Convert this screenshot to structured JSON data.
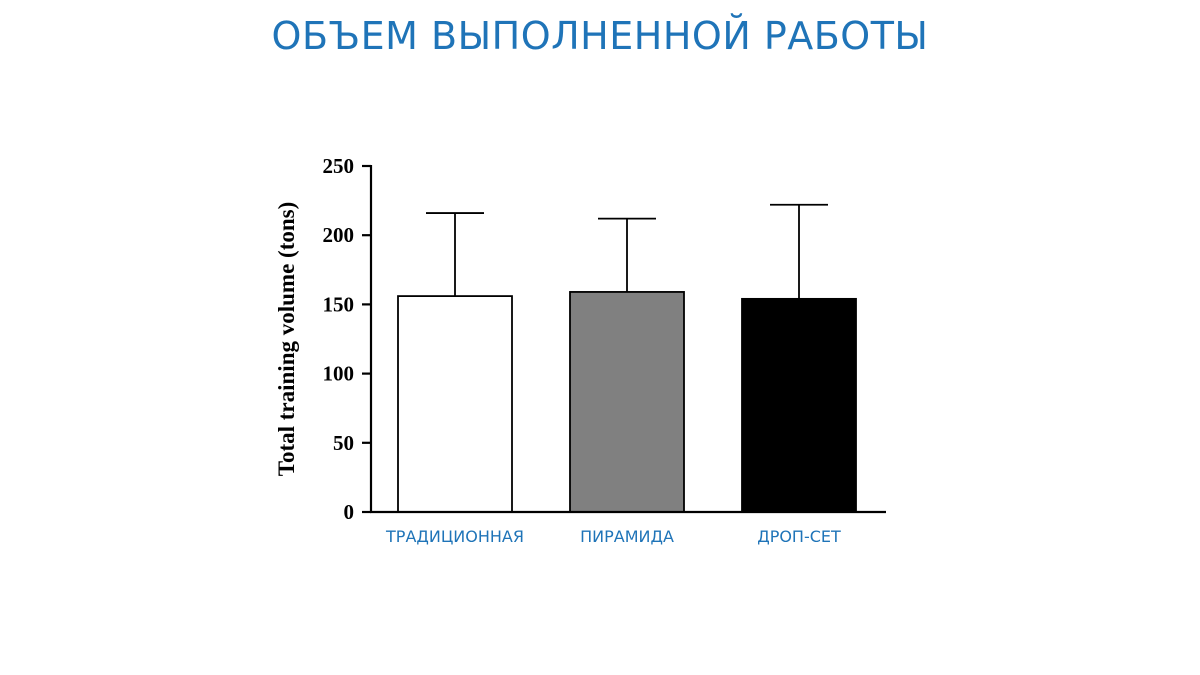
{
  "slide": {
    "title": "ОБЪЕМ ВЫПОЛНЕННОЙ РАБОТЫ"
  },
  "chart_data": {
    "type": "bar",
    "categories": [
      "ТРАДИЦИОННАЯ",
      "ПИРАМИДА",
      "ДРОП-СЕТ"
    ],
    "values": [
      156,
      159,
      154
    ],
    "error_upper": [
      216,
      212,
      222
    ],
    "bar_colors": [
      "#ffffff",
      "#808080",
      "#000000"
    ],
    "ylabel": "Total training volume  (tons)",
    "ylim": [
      0,
      250
    ],
    "yticks": [
      0,
      50,
      100,
      150,
      200,
      250
    ],
    "grid": false,
    "legend": "none"
  }
}
